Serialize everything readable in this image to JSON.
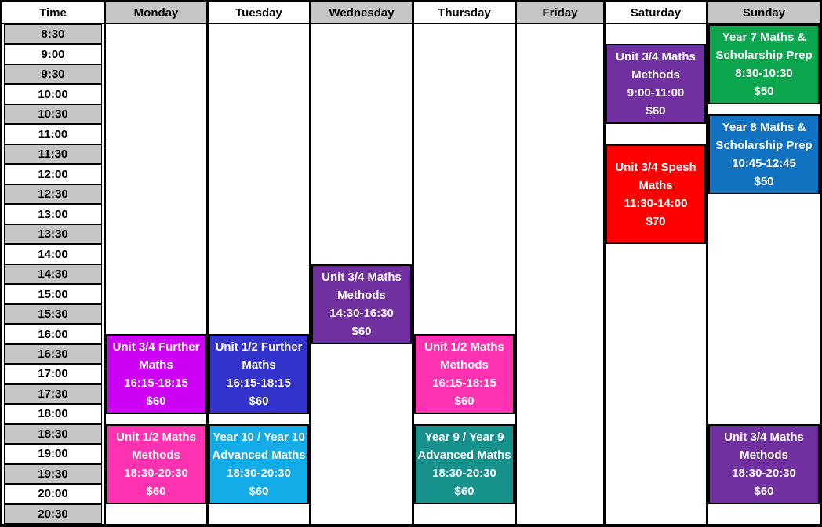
{
  "header": {
    "columns": [
      "Time",
      "Monday",
      "Tuesday",
      "Wednesday",
      "Thursday",
      "Friday",
      "Saturday",
      "Sunday"
    ]
  },
  "time_slots": [
    "8:30",
    "9:00",
    "9:30",
    "10:00",
    "10:30",
    "11:00",
    "11:30",
    "12:00",
    "12:30",
    "13:00",
    "13:30",
    "14:00",
    "14:30",
    "15:00",
    "15:30",
    "16:00",
    "16:30",
    "17:00",
    "17:30",
    "18:00",
    "18:30",
    "19:00",
    "19:30",
    "20:00",
    "20:30"
  ],
  "schedule_start": "8:30",
  "slot_minutes": 30,
  "events": [
    {
      "day": "Monday",
      "title": "Unit 3/4 Further Maths",
      "time": "16:15-18:15",
      "price": "$60",
      "color": "#CC00F2"
    },
    {
      "day": "Monday",
      "title": "Unit 1/2 Maths Methods",
      "time": "18:30-20:30",
      "price": "$60",
      "color": "#FF33B1"
    },
    {
      "day": "Tuesday",
      "title": "Unit 1/2 Further Maths",
      "time": "16:15-18:15",
      "price": "$60",
      "color": "#3333CC"
    },
    {
      "day": "Tuesday",
      "title": "Year 10 / Year 10 Advanced Maths",
      "time": "18:30-20:30",
      "price": "$60",
      "color": "#14ACE8"
    },
    {
      "day": "Wednesday",
      "title": "Unit 3/4 Maths Methods",
      "time": "14:30-16:30",
      "price": "$60",
      "color": "#7030A0"
    },
    {
      "day": "Thursday",
      "title": "Unit 1/2 Maths Methods",
      "time": "16:15-18:15",
      "price": "$60",
      "color": "#FF33B1"
    },
    {
      "day": "Thursday",
      "title": "Year 9 / Year 9 Advanced Maths",
      "time": "18:30-20:30",
      "price": "$60",
      "color": "#17918B"
    },
    {
      "day": "Saturday",
      "title": "Unit 3/4 Maths Methods",
      "time": "9:00-11:00",
      "price": "$60",
      "color": "#7030A0"
    },
    {
      "day": "Saturday",
      "title": "Unit 3/4 Spesh Maths",
      "time": "11:30-14:00",
      "price": "$70",
      "color": "#FE0000"
    },
    {
      "day": "Sunday",
      "title": "Year 7 Maths & Scholarship Prep",
      "time": "8:30-10:30",
      "price": "$50",
      "color": "#0CA64E"
    },
    {
      "day": "Sunday",
      "title": "Year 8 Maths & Scholarship Prep",
      "time": "10:45-12:45",
      "price": "$50",
      "color": "#1072C0"
    },
    {
      "day": "Sunday",
      "title": "Unit 3/4 Maths Methods",
      "time": "18:30-20:30",
      "price": "$60",
      "color": "#7030A0"
    }
  ],
  "colors": {
    "header_gray": "#C6C6C6",
    "grid_line": "#000000",
    "event_text": "#FFFFFF"
  }
}
